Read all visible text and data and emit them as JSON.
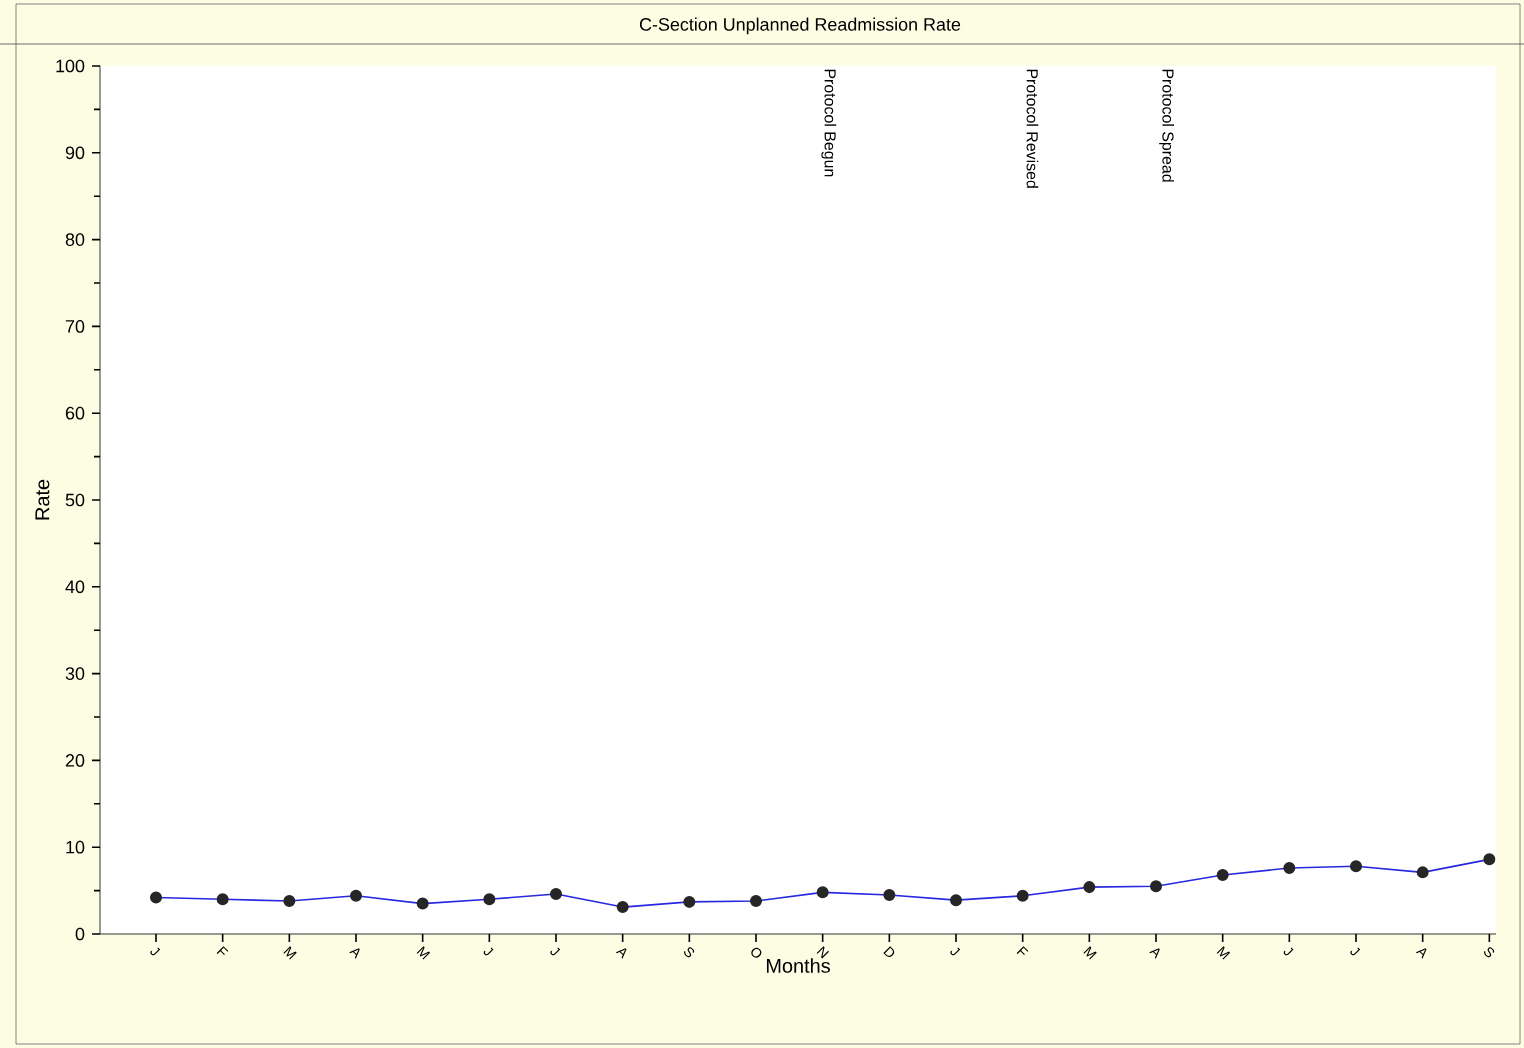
{
  "chart_data": {
    "type": "line",
    "title": "C-Section Unplanned Readmission Rate",
    "xlabel": "Months",
    "ylabel": "Rate",
    "categories": [
      "J",
      "F",
      "M",
      "A",
      "M",
      "J",
      "J",
      "A",
      "S",
      "O",
      "N",
      "D",
      "J",
      "F",
      "M",
      "A",
      "M",
      "J",
      "J",
      "A",
      "S"
    ],
    "series": [
      {
        "color": "#2828e0",
        "values": [
          4.2,
          4.0,
          3.8,
          4.4,
          3.5,
          4.0,
          4.6,
          3.1,
          3.7,
          3.8,
          4.8,
          4.5,
          3.9,
          4.4,
          5.4,
          5.5,
          6.8,
          7.6,
          7.8,
          7.1,
          8.6
        ]
      }
    ],
    "ylim": [
      0,
      100
    ],
    "yticks": [
      0,
      10,
      20,
      30,
      40,
      50,
      60,
      70,
      80,
      90,
      100
    ],
    "annotations": [
      "Protocol Begun",
      "Protocol Revised",
      "Protocol Spread"
    ],
    "grid": false,
    "marker": "circle",
    "line_style": "solid"
  }
}
